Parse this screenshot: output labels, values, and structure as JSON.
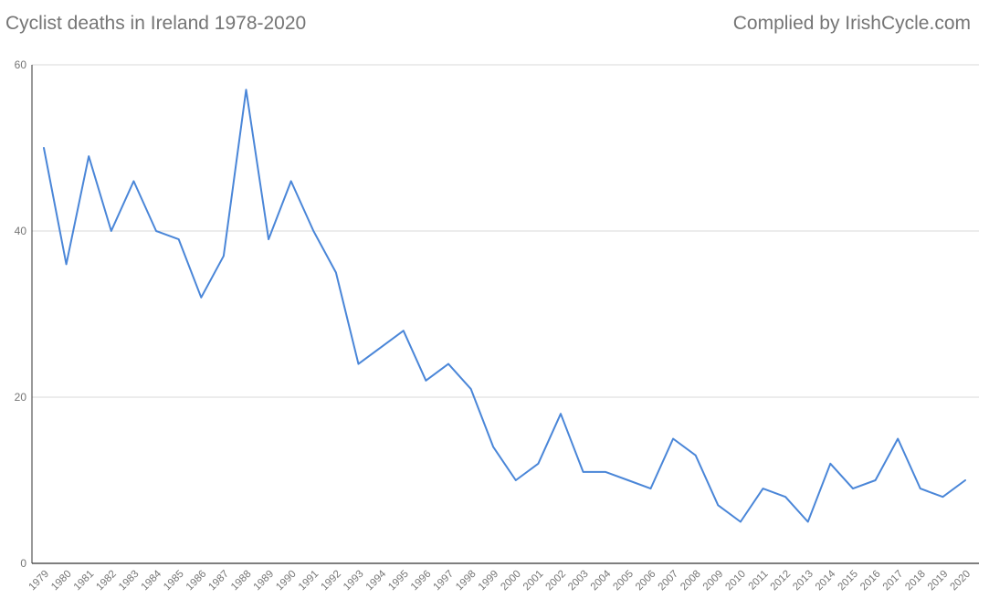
{
  "header": {
    "title": "Cyclist deaths in Ireland 1978-2020",
    "credit": "Complied by IrishCycle.com"
  },
  "chart_data": {
    "type": "line",
    "title": "Cyclist deaths in Ireland 1978-2020",
    "xlabel": "",
    "ylabel": "",
    "ylim": [
      0,
      60
    ],
    "yticks": [
      0,
      20,
      40,
      60
    ],
    "grid": true,
    "line_color": "#4a86d8",
    "categories": [
      "1979",
      "1980",
      "1981",
      "1982",
      "1983",
      "1984",
      "1985",
      "1986",
      "1987",
      "1988",
      "1989",
      "1990",
      "1991",
      "1992",
      "1993",
      "1994",
      "1995",
      "1996",
      "1997",
      "1998",
      "1999",
      "2000",
      "2001",
      "2002",
      "2003",
      "2004",
      "2005",
      "2006",
      "2007",
      "2008",
      "2009",
      "2010",
      "2011",
      "2012",
      "2013",
      "2014",
      "2015",
      "2016",
      "2017",
      "2018",
      "2019",
      "2020"
    ],
    "values": [
      50,
      36,
      49,
      40,
      46,
      40,
      39,
      32,
      37,
      57,
      39,
      46,
      40,
      35,
      24,
      26,
      28,
      22,
      24,
      21,
      14,
      10,
      12,
      18,
      11,
      11,
      10,
      9,
      15,
      13,
      7,
      5,
      9,
      8,
      5,
      12,
      9,
      10,
      15,
      9,
      8,
      10
    ]
  }
}
